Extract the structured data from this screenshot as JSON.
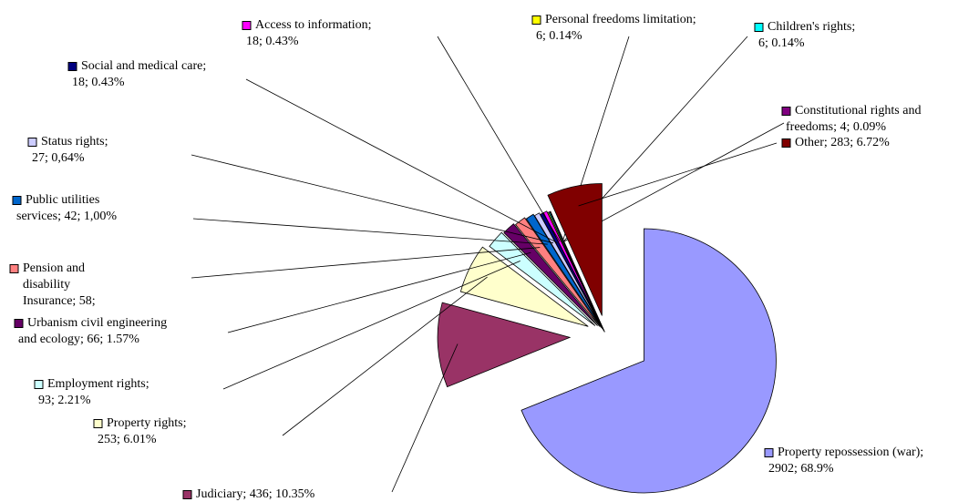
{
  "chart_data": {
    "type": "pie",
    "values": [
      2902,
      436,
      253,
      93,
      66,
      58,
      42,
      27,
      18,
      18,
      6,
      6,
      4,
      283
    ],
    "labels": [
      [
        "Property repossession (war);",
        "2902; 68.9%"
      ],
      [
        "Judiciary; 436; 10.35%"
      ],
      [
        "Property rights;",
        "253; 6.01%"
      ],
      [
        "Employment rights;",
        "93; 2.21%"
      ],
      [
        "Urbanism civil engineering",
        "and ecology; 66; 1.57%"
      ],
      [
        "Pension and",
        "disability",
        "Insurance; 58;"
      ],
      [
        "Public utilities",
        "services; 42; 1,00%"
      ],
      [
        "Status rights;",
        "27; 0,64%"
      ],
      [
        "Social and medical care;",
        "18; 0.43%"
      ],
      [
        "Access to information;",
        "18; 0.43%"
      ],
      [
        "Personal freedoms limitation;",
        "6; 0.14%"
      ],
      [
        "Children's rights;",
        "6; 0.14%"
      ],
      [
        "Constitutional rights and",
        "freedoms; 4; 0.09%"
      ],
      [
        "Other; 283; 6.72%"
      ]
    ],
    "colors": [
      "#9999ff",
      "#993366",
      "#ffffcc",
      "#ccffff",
      "#660066",
      "#ff8080",
      "#0066cc",
      "#ccccff",
      "#000080",
      "#ff00ff",
      "#ffff00",
      "#00ffff",
      "#800080",
      "#800000"
    ]
  }
}
